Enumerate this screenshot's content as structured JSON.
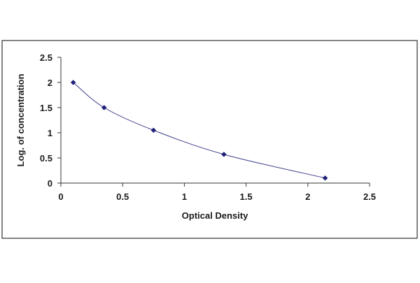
{
  "chart_data": {
    "type": "scatter",
    "title": "",
    "xlabel": "Optical Density",
    "ylabel": "Log. of concentration",
    "xlim": [
      0,
      2.5
    ],
    "ylim": [
      0,
      2.5
    ],
    "x_ticks": [
      0,
      0.5,
      1,
      1.5,
      2,
      2.5
    ],
    "x_tick_labels": [
      "0",
      "0.5",
      "1",
      "1.5",
      "2",
      "2.5"
    ],
    "y_ticks": [
      0,
      0.5,
      1,
      1.5,
      2,
      2.5
    ],
    "y_tick_labels": [
      "0",
      "0.5",
      "1",
      "1.5",
      "2",
      "2.5"
    ],
    "grid": false,
    "legend": "none",
    "series": [
      {
        "points": [
          {
            "x": 0.1,
            "y": 2.0
          },
          {
            "x": 0.35,
            "y": 1.5
          },
          {
            "x": 0.75,
            "y": 1.05
          },
          {
            "x": 1.32,
            "y": 0.57
          },
          {
            "x": 2.14,
            "y": 0.1
          }
        ],
        "fit_line": true,
        "marker": "diamond",
        "color": "#1f1f7a"
      }
    ]
  },
  "colors": {
    "axis": "#333333",
    "frame": "#333333",
    "curve": "#3b3b8a",
    "marker": "#1f1f7a"
  }
}
